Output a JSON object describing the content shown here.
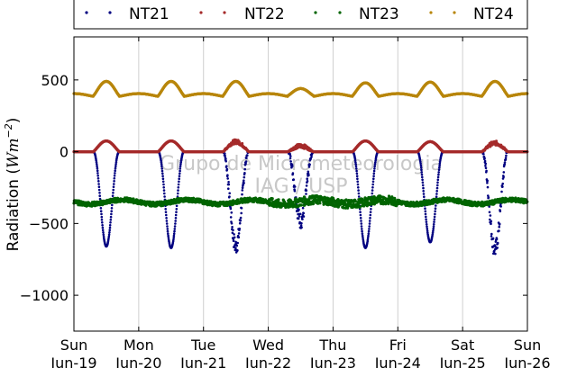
{
  "chart_data": {
    "type": "scatter",
    "title": "",
    "ylabel": "Radiation (Wm^-2)",
    "ylabel_main": "Radiation (",
    "ylabel_unit": "Wm",
    "ylabel_exp": "−2",
    "ylabel_close": ")",
    "xlabel": "",
    "ylim": [
      -1250,
      800
    ],
    "xlim": [
      0,
      7
    ],
    "y_ticks": [
      {
        "value": 500,
        "label": "500"
      },
      {
        "value": 0,
        "label": "0"
      },
      {
        "value": -500,
        "label": "−500"
      },
      {
        "value": -1000,
        "label": "−1000"
      }
    ],
    "x_ticks": [
      {
        "value": 0,
        "day": "Sun",
        "date": "Jun-19"
      },
      {
        "value": 1,
        "day": "Mon",
        "date": "Jun-20"
      },
      {
        "value": 2,
        "day": "Tue",
        "date": "Jun-21"
      },
      {
        "value": 3,
        "day": "Wed",
        "date": "Jun-22"
      },
      {
        "value": 4,
        "day": "Thu",
        "date": "Jun-23"
      },
      {
        "value": 5,
        "day": "Fri",
        "date": "Jun-24"
      },
      {
        "value": 6,
        "day": "Sat",
        "date": "Jun-25"
      },
      {
        "value": 7,
        "day": "Sun",
        "date": "Jun-26"
      }
    ],
    "grid": "vertical",
    "legend_position": "top",
    "watermark": [
      "Grupo de Micrometeorologia",
      "IAG / USP"
    ],
    "series": [
      {
        "name": "NT21",
        "color": "#000080",
        "base": 0,
        "daily_peaks": [
          -660,
          -670,
          -660,
          -480,
          -670,
          -630,
          -680
        ],
        "noise": 0
      },
      {
        "name": "NT22",
        "color": "#a52a2a",
        "base": 0,
        "daily_peaks": [
          75,
          75,
          70,
          40,
          75,
          70,
          60
        ],
        "noise": 0
      },
      {
        "name": "NT23",
        "color": "#006400",
        "base": -350,
        "daily_peaks": [
          0,
          0,
          0,
          0,
          0,
          0,
          0
        ],
        "noise": 15
      },
      {
        "name": "NT24",
        "color": "#b8860b",
        "base": 390,
        "daily_peaks": [
          100,
          100,
          100,
          50,
          90,
          95,
          100
        ],
        "noise": 0
      }
    ]
  }
}
